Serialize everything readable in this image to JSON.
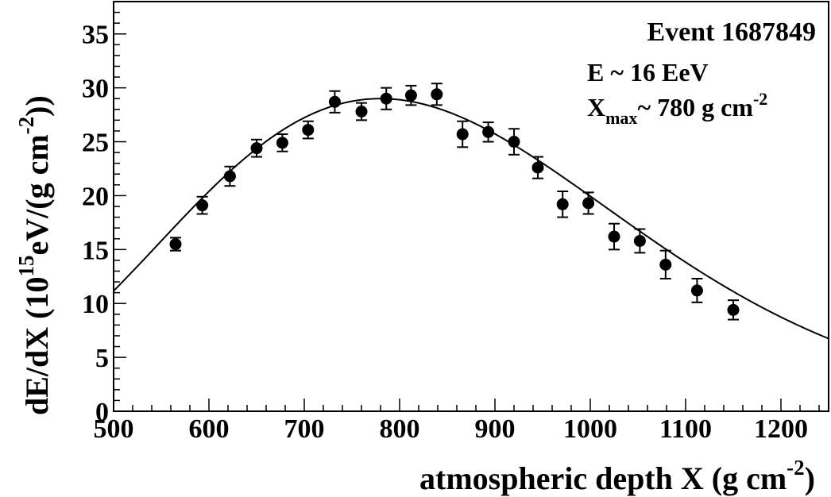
{
  "chart_data": {
    "type": "scatter",
    "xlabel": {
      "main": "atmospheric depth X (g cm",
      "sup": "-2",
      "end": ")"
    },
    "ylabel": {
      "a": "dE/dX (10",
      "sup1": "15",
      "b": "eV/(g cm",
      "sup2": "-2",
      "c": "))"
    },
    "xlim": [
      500,
      1250
    ],
    "ylim": [
      0,
      38
    ],
    "x_ticks": [
      "500",
      "600",
      "700",
      "800",
      "900",
      "1000",
      "1100",
      "1200"
    ],
    "y_ticks": [
      "0",
      "5",
      "10",
      "15",
      "20",
      "25",
      "30",
      "35"
    ],
    "annotations": {
      "event": "Event 1687849",
      "energy": "E ~ 16 EeV",
      "xmax_main": "X",
      "xmax_sub": "max",
      "xmax_value": "~ 780 g cm",
      "xmax_sup": "-2"
    },
    "series": [
      {
        "points": [
          {
            "x": 565,
            "y": 15.5,
            "err": 0.6
          },
          {
            "x": 593,
            "y": 19.1,
            "err": 0.8
          },
          {
            "x": 622,
            "y": 21.8,
            "err": 0.9
          },
          {
            "x": 650,
            "y": 24.4,
            "err": 0.8
          },
          {
            "x": 677,
            "y": 24.9,
            "err": 0.8
          },
          {
            "x": 704,
            "y": 26.1,
            "err": 0.8
          },
          {
            "x": 732,
            "y": 28.7,
            "err": 1.0
          },
          {
            "x": 760,
            "y": 27.8,
            "err": 0.8
          },
          {
            "x": 786,
            "y": 29.0,
            "err": 1.0
          },
          {
            "x": 812,
            "y": 29.3,
            "err": 0.9
          },
          {
            "x": 839,
            "y": 29.4,
            "err": 1.0
          },
          {
            "x": 866,
            "y": 25.7,
            "err": 1.2
          },
          {
            "x": 893,
            "y": 25.9,
            "err": 0.9
          },
          {
            "x": 920,
            "y": 25.0,
            "err": 1.2
          },
          {
            "x": 945,
            "y": 22.6,
            "err": 1.0
          },
          {
            "x": 971,
            "y": 19.2,
            "err": 1.2
          },
          {
            "x": 998,
            "y": 19.3,
            "err": 1.0
          },
          {
            "x": 1025,
            "y": 16.2,
            "err": 1.2
          },
          {
            "x": 1052,
            "y": 15.8,
            "err": 1.1
          },
          {
            "x": 1079,
            "y": 13.6,
            "err": 1.3
          },
          {
            "x": 1112,
            "y": 11.2,
            "err": 1.1
          },
          {
            "x": 1150,
            "y": 9.4,
            "err": 0.9
          }
        ]
      }
    ],
    "fit": {
      "type": "Gaisser-Hillas",
      "xmax": 780,
      "ymax": 29,
      "x0": 0,
      "lambda": 70
    }
  }
}
